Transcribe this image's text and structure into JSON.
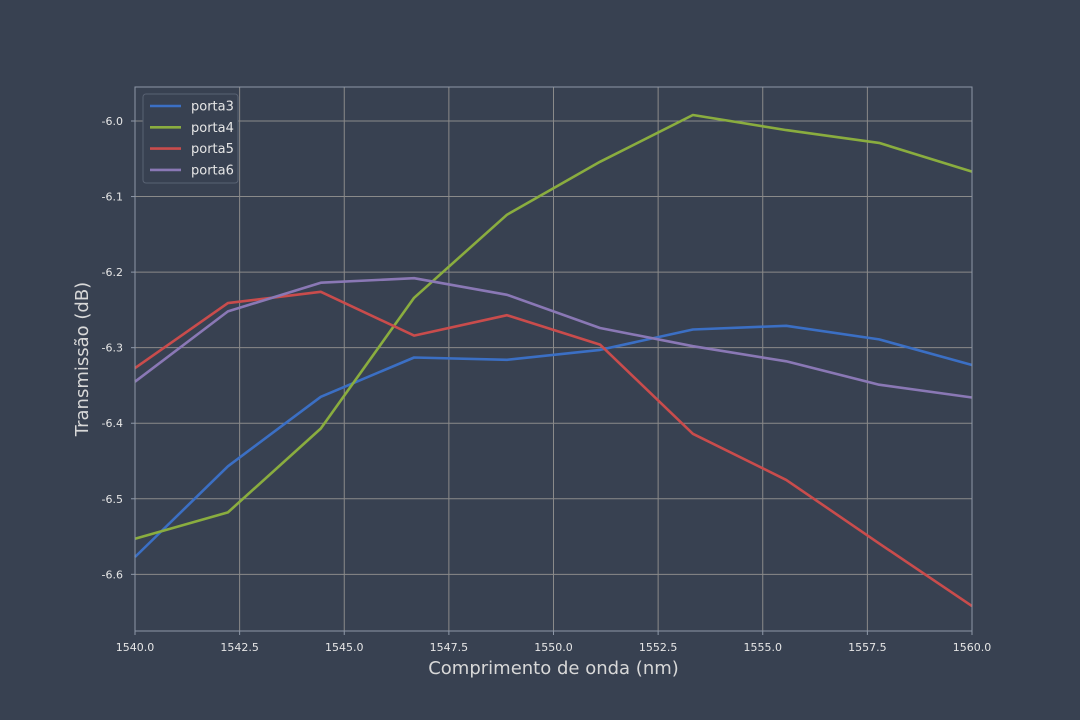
{
  "chart_data": {
    "type": "line",
    "title": "",
    "xlabel": "Comprimento de onda (nm)",
    "ylabel": "Transmissão (dB)",
    "xlim": [
      1540.0,
      1560.0
    ],
    "ylim": [
      -6.675,
      -5.955
    ],
    "grid": true,
    "legend_position": "top-left",
    "x_ticks": [
      1540.0,
      1542.5,
      1545.0,
      1547.5,
      1550.0,
      1552.5,
      1555.0,
      1557.5,
      1560.0
    ],
    "x_tick_labels": [
      "1540.0",
      "1542.5",
      "1545.0",
      "1547.5",
      "1550.0",
      "1552.5",
      "1555.0",
      "1557.5",
      "1560.0"
    ],
    "y_ticks": [
      -6.6,
      -6.5,
      -6.4,
      -6.3,
      -6.2,
      -6.1,
      -6.0
    ],
    "y_tick_labels": [
      "-6.6",
      "-6.5",
      "-6.4",
      "-6.3",
      "-6.2",
      "-6.1",
      "-6.0"
    ],
    "x": [
      1540.0,
      1542.22,
      1544.44,
      1546.67,
      1548.89,
      1551.11,
      1553.33,
      1555.56,
      1557.78,
      1560.0
    ],
    "series": [
      {
        "name": "porta3",
        "color": "#3b6fc4",
        "values": [
          -6.577,
          -6.457,
          -6.365,
          -6.313,
          -6.316,
          -6.303,
          -6.276,
          -6.271,
          -6.289,
          -6.323
        ]
      },
      {
        "name": "porta4",
        "color": "#8aad3f",
        "values": [
          -6.553,
          -6.518,
          -6.407,
          -6.234,
          -6.124,
          -6.054,
          -5.992,
          -6.012,
          -6.029,
          -6.067
        ]
      },
      {
        "name": "porta5",
        "color": "#c94c4c",
        "values": [
          -6.327,
          -6.241,
          -6.226,
          -6.284,
          -6.257,
          -6.296,
          -6.414,
          -6.475,
          -6.559,
          -6.642
        ]
      },
      {
        "name": "porta6",
        "color": "#8a78b5",
        "values": [
          -6.345,
          -6.252,
          -6.214,
          -6.208,
          -6.23,
          -6.274,
          -6.298,
          -6.318,
          -6.349,
          -6.366
        ]
      }
    ]
  }
}
